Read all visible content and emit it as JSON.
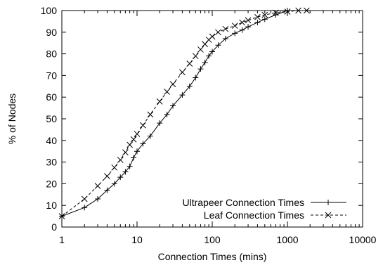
{
  "chart_data": {
    "type": "line",
    "xlabel": "Connection Times (mins)",
    "ylabel": "% of Nodes",
    "xscale": "log",
    "xlim": [
      1,
      10000
    ],
    "ylim": [
      0,
      100
    ],
    "x_ticks": [
      1,
      10,
      100,
      1000,
      10000
    ],
    "x_tick_labels": [
      "1",
      "10",
      "100",
      "1000",
      "10000"
    ],
    "y_ticks": [
      0,
      10,
      20,
      30,
      40,
      50,
      60,
      70,
      80,
      90,
      100
    ],
    "y_tick_labels": [
      "0",
      "10",
      "20",
      "30",
      "40",
      "50",
      "60",
      "70",
      "80",
      "90",
      "100"
    ],
    "grid": false,
    "legend_position": "bottom-right",
    "series": [
      {
        "name": "Ultrapeer Connection Times",
        "marker": "plus",
        "line_style": "solid",
        "color": "#000000",
        "x": [
          1,
          2,
          3,
          4,
          5,
          6,
          7,
          8,
          9,
          10,
          12,
          15,
          20,
          25,
          30,
          40,
          50,
          60,
          70,
          80,
          90,
          100,
          120,
          150,
          200,
          250,
          300,
          400,
          500,
          700,
          1000
        ],
        "y": [
          5,
          9,
          13,
          17,
          20,
          23,
          25.5,
          28,
          32,
          35,
          38.5,
          42,
          48,
          52,
          56,
          61,
          65,
          69,
          73,
          76,
          79,
          81,
          84,
          87,
          89.5,
          91,
          92.5,
          94.5,
          96,
          98,
          100
        ]
      },
      {
        "name": "Leaf Connection Times",
        "marker": "cross",
        "line_style": "dashed",
        "color": "#000000",
        "x": [
          1,
          2,
          3,
          4,
          5,
          6,
          7,
          8,
          9,
          10,
          12,
          15,
          20,
          25,
          30,
          40,
          50,
          60,
          70,
          80,
          90,
          100,
          120,
          150,
          200,
          250,
          300,
          400,
          500,
          700,
          1000,
          1400,
          1800
        ],
        "y": [
          5,
          13,
          19,
          23.5,
          27.5,
          31,
          34.5,
          38,
          40.5,
          43,
          47,
          52,
          58,
          62.5,
          66,
          71.5,
          75.5,
          79,
          82,
          84.5,
          86.5,
          88,
          90,
          91.5,
          93,
          94.5,
          95.5,
          97,
          98,
          99,
          99.5,
          100,
          100
        ]
      }
    ]
  }
}
